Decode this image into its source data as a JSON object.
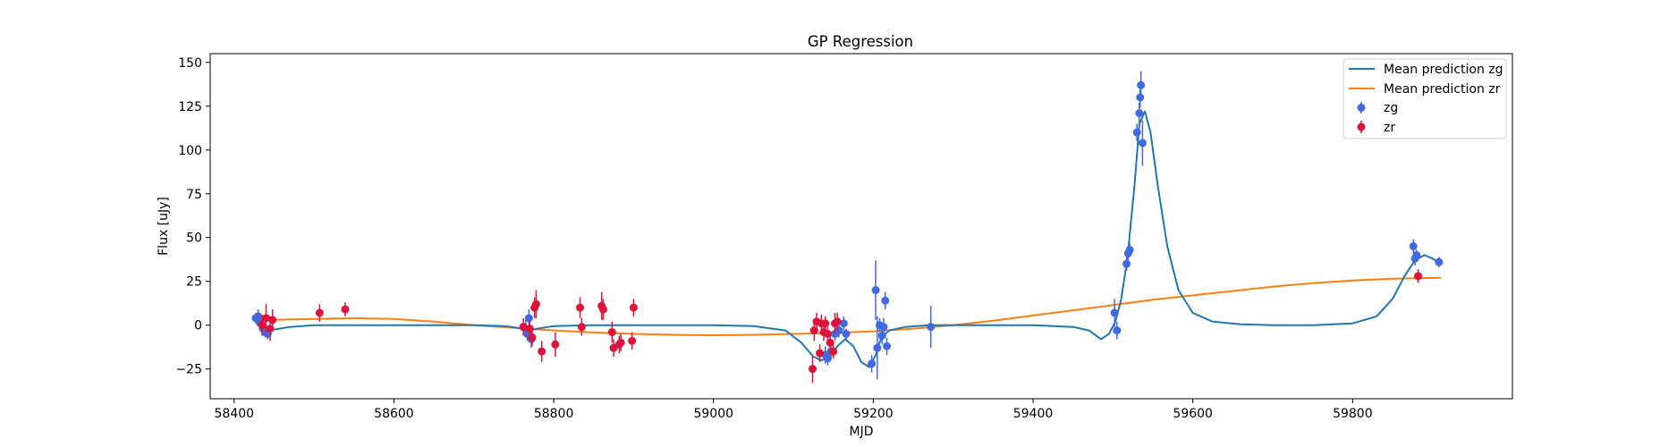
{
  "chart_data": {
    "type": "scatter",
    "title": "GP Regression",
    "xlabel": "MJD",
    "ylabel": "Flux [uJy]",
    "xlim": [
      58370,
      60000
    ],
    "ylim": [
      -42,
      155
    ],
    "xticks": [
      58400,
      58600,
      58800,
      59000,
      59200,
      59400,
      59600,
      59800
    ],
    "yticks": [
      -25,
      0,
      25,
      50,
      75,
      100,
      125,
      150
    ],
    "grid": false,
    "legend_position": "top-right",
    "legend": [
      "Mean prediction zg",
      "Mean prediction zr",
      "zg",
      "zr"
    ],
    "series": [
      {
        "name": "Mean prediction zg",
        "kind": "line",
        "color": "#1f77b4",
        "points": [
          [
            58428,
            1
          ],
          [
            58435,
            -2
          ],
          [
            58442,
            -4
          ],
          [
            58450,
            -2.5
          ],
          [
            58470,
            -1
          ],
          [
            58500,
            0
          ],
          [
            58600,
            0
          ],
          [
            58700,
            0
          ],
          [
            58740,
            -0.5
          ],
          [
            58760,
            -2
          ],
          [
            58770,
            -3
          ],
          [
            58780,
            -2
          ],
          [
            58800,
            -0.5
          ],
          [
            58850,
            0
          ],
          [
            58950,
            0
          ],
          [
            59000,
            0
          ],
          [
            59050,
            -0.5
          ],
          [
            59090,
            -3
          ],
          [
            59110,
            -10
          ],
          [
            59125,
            -18
          ],
          [
            59135,
            -20
          ],
          [
            59145,
            -19
          ],
          [
            59155,
            -12
          ],
          [
            59165,
            -8
          ],
          [
            59175,
            -12
          ],
          [
            59185,
            -21
          ],
          [
            59195,
            -24
          ],
          [
            59203,
            -17
          ],
          [
            59210,
            -7
          ],
          [
            59220,
            -3
          ],
          [
            59240,
            -1
          ],
          [
            59270,
            0
          ],
          [
            59300,
            0
          ],
          [
            59350,
            0
          ],
          [
            59400,
            0
          ],
          [
            59450,
            -1
          ],
          [
            59470,
            -3
          ],
          [
            59485,
            -8
          ],
          [
            59495,
            -5
          ],
          [
            59503,
            2
          ],
          [
            59510,
            14
          ],
          [
            59518,
            38
          ],
          [
            59527,
            80
          ],
          [
            59533,
            115
          ],
          [
            59540,
            122
          ],
          [
            59547,
            110
          ],
          [
            59556,
            80
          ],
          [
            59568,
            45
          ],
          [
            59582,
            20
          ],
          [
            59600,
            7
          ],
          [
            59625,
            2
          ],
          [
            59660,
            0.5
          ],
          [
            59700,
            0
          ],
          [
            59750,
            0
          ],
          [
            59800,
            1
          ],
          [
            59830,
            5
          ],
          [
            59850,
            15
          ],
          [
            59865,
            28
          ],
          [
            59878,
            37
          ],
          [
            59890,
            40
          ],
          [
            59900,
            38
          ],
          [
            59910,
            35
          ]
        ]
      },
      {
        "name": "Mean prediction zr",
        "kind": "line",
        "color": "#ff7f0e",
        "points": [
          [
            58428,
            2.5
          ],
          [
            58450,
            3
          ],
          [
            58500,
            3.5
          ],
          [
            58550,
            4
          ],
          [
            58600,
            3.5
          ],
          [
            58650,
            2
          ],
          [
            58700,
            0
          ],
          [
            58750,
            -1.5
          ],
          [
            58800,
            -3
          ],
          [
            58850,
            -4.2
          ],
          [
            58900,
            -5
          ],
          [
            58950,
            -5.5
          ],
          [
            59000,
            -5.8
          ],
          [
            59050,
            -5.5
          ],
          [
            59100,
            -5
          ],
          [
            59150,
            -4.5
          ],
          [
            59200,
            -3.5
          ],
          [
            59250,
            -2
          ],
          [
            59300,
            0
          ],
          [
            59350,
            2.5
          ],
          [
            59400,
            5.5
          ],
          [
            59450,
            8.5
          ],
          [
            59500,
            11.5
          ],
          [
            59550,
            14.5
          ],
          [
            59600,
            17
          ],
          [
            59650,
            19.5
          ],
          [
            59700,
            22
          ],
          [
            59750,
            24
          ],
          [
            59800,
            25.5
          ],
          [
            59850,
            26.5
          ],
          [
            59910,
            27
          ]
        ]
      },
      {
        "name": "zg",
        "kind": "errorbar",
        "color": "#4169e1",
        "points": [
          [
            58427,
            4,
            3
          ],
          [
            58430,
            5,
            4
          ],
          [
            58433,
            1,
            3
          ],
          [
            58436,
            -2,
            4
          ],
          [
            58439,
            -4,
            3
          ],
          [
            58442,
            -5,
            3
          ],
          [
            58765,
            -2,
            5
          ],
          [
            58767,
            -5,
            4
          ],
          [
            58769,
            4,
            5
          ],
          [
            58772,
            -8,
            5
          ],
          [
            59140,
            -17,
            5
          ],
          [
            59143,
            -19,
            4
          ],
          [
            59147,
            -15,
            4
          ],
          [
            59152,
            -5,
            4
          ],
          [
            59157,
            -3,
            4
          ],
          [
            59163,
            1,
            4
          ],
          [
            59166,
            -5,
            3
          ],
          [
            59198,
            -22,
            5
          ],
          [
            59203,
            20,
            17
          ],
          [
            59205,
            -13,
            18
          ],
          [
            59208,
            0,
            4
          ],
          [
            59211,
            -6,
            5
          ],
          [
            59213,
            -1,
            5
          ],
          [
            59215,
            14,
            5
          ],
          [
            59217,
            -12,
            5
          ],
          [
            59272,
            -1,
            12
          ],
          [
            59502,
            7,
            8
          ],
          [
            59505,
            -3,
            5
          ],
          [
            59517,
            35,
            4
          ],
          [
            59519,
            41,
            4
          ],
          [
            59521,
            43,
            4
          ],
          [
            59530,
            110,
            5
          ],
          [
            59533,
            121,
            6
          ],
          [
            59534,
            130,
            6
          ],
          [
            59535,
            137,
            8
          ],
          [
            59537,
            104,
            13
          ],
          [
            59876,
            45,
            4
          ],
          [
            59878,
            38,
            4
          ],
          [
            59880,
            40,
            3
          ],
          [
            59908,
            36,
            3
          ]
        ]
      },
      {
        "name": "zr",
        "kind": "errorbar",
        "color": "#dc143c",
        "points": [
          [
            58435,
            0,
            6
          ],
          [
            58440,
            4,
            8
          ],
          [
            58445,
            -2,
            7
          ],
          [
            58448,
            3,
            6
          ],
          [
            58507,
            7,
            5
          ],
          [
            58539,
            9,
            4
          ],
          [
            58762,
            -1,
            5
          ],
          [
            58770,
            -2,
            4
          ],
          [
            58773,
            -7,
            5
          ],
          [
            58776,
            10,
            6
          ],
          [
            58778,
            12,
            8
          ],
          [
            58785,
            -15,
            6
          ],
          [
            58802,
            -11,
            7
          ],
          [
            58833,
            10,
            6
          ],
          [
            58835,
            -1,
            5
          ],
          [
            58860,
            11,
            8
          ],
          [
            58862,
            9,
            6
          ],
          [
            58873,
            -4,
            6
          ],
          [
            58875,
            -13,
            5
          ],
          [
            58882,
            -11,
            5
          ],
          [
            58884,
            -10,
            5
          ],
          [
            58898,
            -9,
            5
          ],
          [
            58900,
            10,
            5
          ],
          [
            59124,
            -25,
            8
          ],
          [
            59126,
            -3,
            6
          ],
          [
            59129,
            2,
            5
          ],
          [
            59133,
            -16,
            5
          ],
          [
            59135,
            1,
            5
          ],
          [
            59138,
            -4,
            5
          ],
          [
            59140,
            1,
            4
          ],
          [
            59143,
            -5,
            4
          ],
          [
            59146,
            -10,
            4
          ],
          [
            59150,
            -15,
            4
          ],
          [
            59152,
            1,
            6
          ],
          [
            59155,
            2,
            5
          ],
          [
            59882,
            28,
            4
          ]
        ]
      }
    ]
  }
}
